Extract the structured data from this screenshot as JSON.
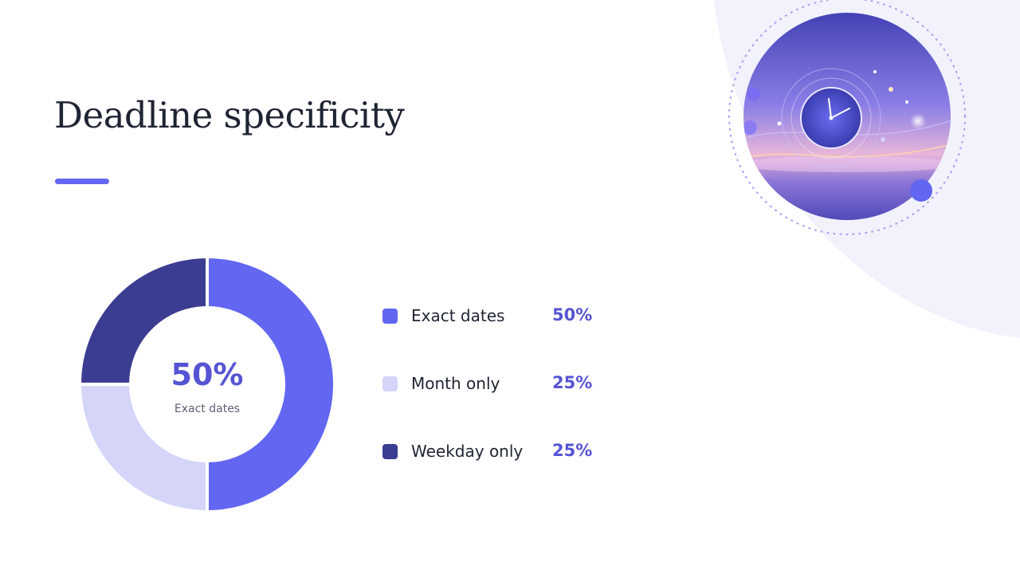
{
  "slide": {
    "title": "Deadline specificity"
  },
  "colors": {
    "accent": "#6366f1",
    "exact": "#6366f1",
    "month": "#d4d5f8",
    "weekday": "#3b3d91",
    "background_arc": "#f2f2fd",
    "center_value": "#5554d3"
  },
  "chart_center": {
    "value": "50%",
    "label": "Exact dates"
  },
  "legend": [
    {
      "label": "Exact dates",
      "value": "50%"
    },
    {
      "label": "Month only",
      "value": "25%"
    },
    {
      "label": "Weekday only",
      "value": "25%"
    }
  ],
  "illustration": {
    "icon": "clock-orbit-icon"
  },
  "chart_data": {
    "type": "pie",
    "donut": true,
    "categories": [
      "Exact dates",
      "Month only",
      "Weekday only"
    ],
    "values": [
      50,
      25,
      25
    ],
    "colors": [
      "#6366f1",
      "#d4d5f8",
      "#3b3d91"
    ],
    "title": "Deadline specificity",
    "center_text": "50%",
    "center_subtext": "Exact dates",
    "legend_position": "right"
  }
}
